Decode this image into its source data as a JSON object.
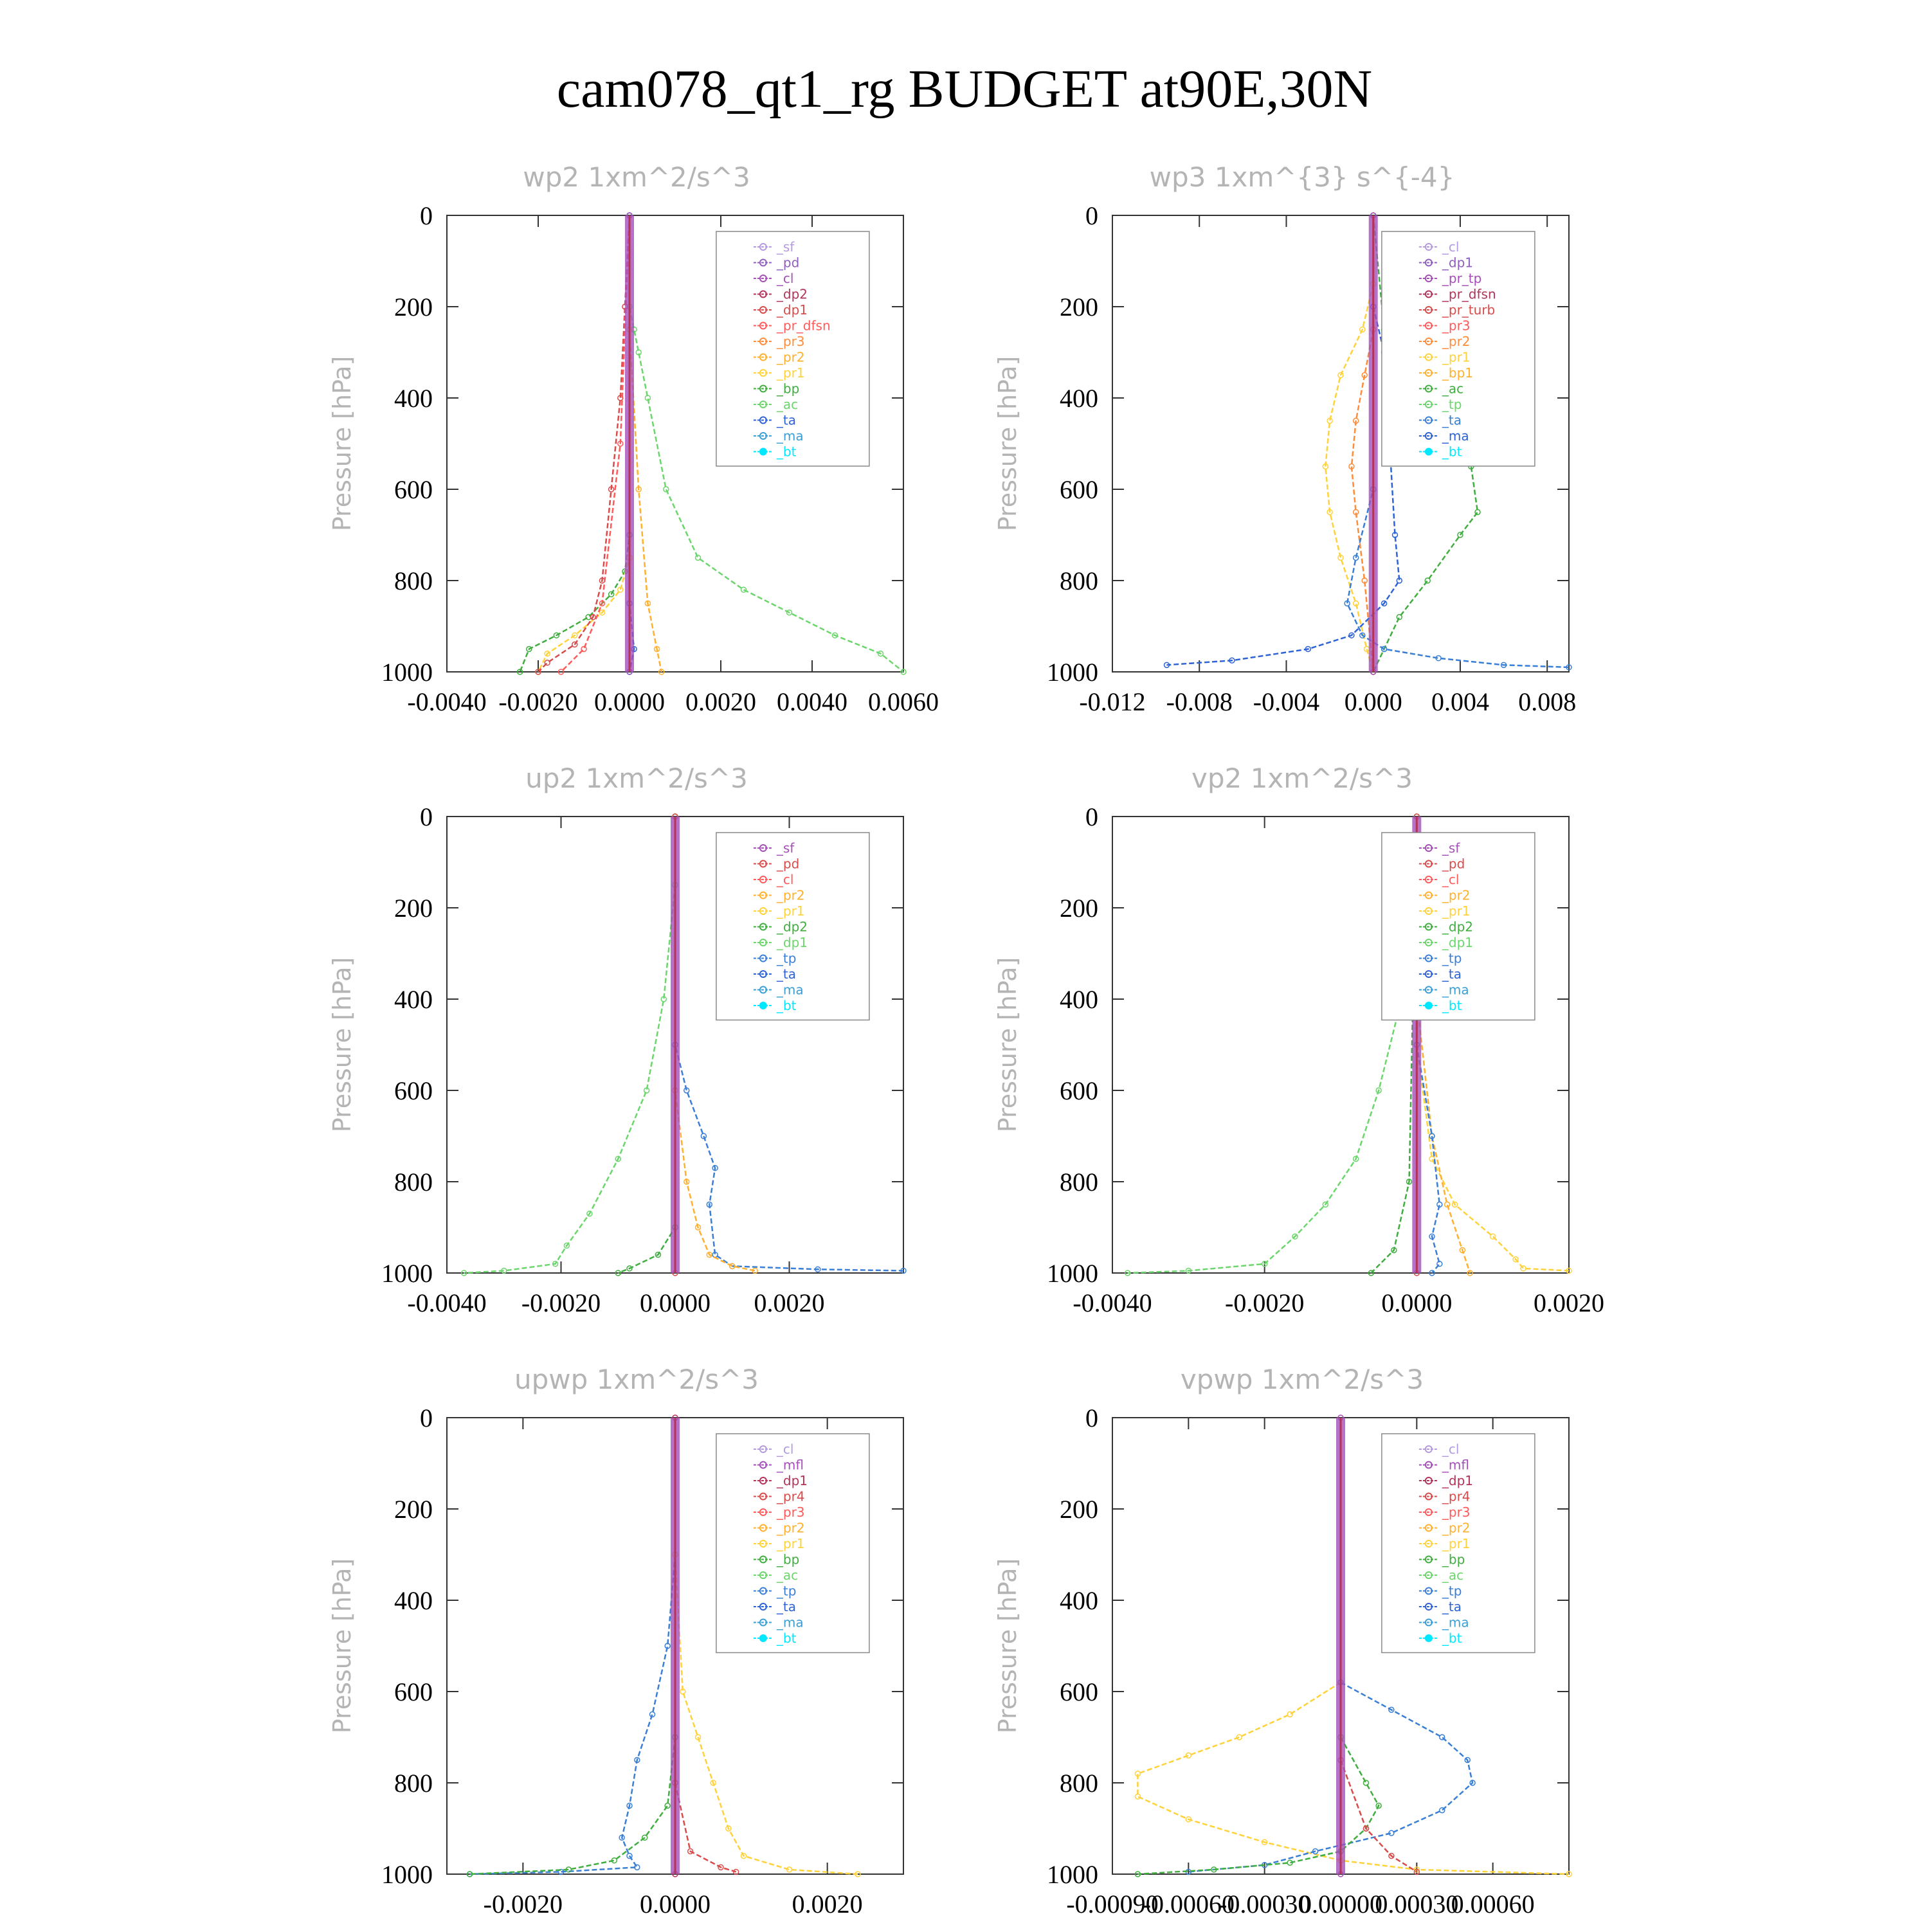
{
  "figure": {
    "title": "cam078_qt1_rg  BUDGET at90E,30N"
  },
  "colors": {
    "sf": "#b49adf",
    "pd": "#8e5fbf",
    "cl": "#a44fb8",
    "dp2": "#b43358",
    "dp1": "#d94b4b",
    "pr_dfsn": "#ff5a5a",
    "pr3": "#ff8c3a",
    "pr2": "#ffb02e",
    "pr1": "#ffd23a",
    "bp": "#3fae3f",
    "ac": "#6bd66b",
    "ta": "#2e63d6",
    "ma": "#3a9fd6",
    "bt": "#00e8ff",
    "tp": "#3a7fd6"
  },
  "chart_data": [
    {
      "type": "line",
      "id": "wp2",
      "title": "wp2   1xm^2/s^3",
      "ylabel": "Pressure [hPa]",
      "xlim": [
        -0.004,
        0.006
      ],
      "ylim": [
        1000,
        0
      ],
      "xticks": [
        "-0.0040",
        "-0.0020",
        "0.0000",
        "0.0020",
        "0.0040",
        "0.0060"
      ],
      "xtick_values": [
        -0.004,
        -0.002,
        0.0,
        0.002,
        0.004,
        0.006
      ],
      "yticks": [
        "0",
        "200",
        "400",
        "600",
        "800",
        "1000"
      ],
      "legend": [
        "_sf",
        "_pd",
        "_cl",
        "_dp2",
        "_dp1",
        "_pr_dfsn",
        "_pr3",
        "_pr2",
        "_pr1",
        "_bp",
        "_ac",
        "_ta",
        "_ma",
        "_bt"
      ],
      "legend_colors": [
        "#b49adf",
        "#8e5fbf",
        "#a44fb8",
        "#b43358",
        "#d94b4b",
        "#ff5a5a",
        "#ff8c3a",
        "#ffb02e",
        "#ffd23a",
        "#3fae3f",
        "#6bd66b",
        "#2e63d6",
        "#3a9fd6",
        "#00e8ff"
      ],
      "series": [
        {
          "color": "#6bd66b",
          "x": [
            0,
            0,
            0.0001,
            0.0002,
            0.0004,
            0.0008,
            0.0015,
            0.0025,
            0.0035,
            0.0045,
            0.0055,
            0.006
          ],
          "y": [
            0,
            200,
            250,
            300,
            400,
            600,
            750,
            820,
            870,
            920,
            960,
            1000
          ]
        },
        {
          "color": "#3fae3f",
          "x": [
            0,
            0,
            -0.0001,
            -0.0004,
            -0.0009,
            -0.0016,
            -0.0022,
            -0.0024
          ],
          "y": [
            0,
            700,
            780,
            830,
            880,
            920,
            950,
            1000
          ]
        },
        {
          "color": "#ffd23a",
          "x": [
            0,
            0,
            -0.0002,
            -0.0006,
            -0.0012,
            -0.0018,
            -0.002
          ],
          "y": [
            0,
            750,
            820,
            870,
            920,
            960,
            1000
          ]
        },
        {
          "color": "#ffb02e",
          "x": [
            0,
            0,
            0.0002,
            0.0004,
            0.0006,
            0.0007
          ],
          "y": [
            0,
            250,
            600,
            850,
            950,
            1000
          ]
        },
        {
          "color": "#d94b4b",
          "x": [
            0,
            -0.0001,
            -0.0002,
            -0.0004,
            -0.0006,
            -0.0008,
            -0.0012,
            -0.0018,
            -0.002
          ],
          "y": [
            0,
            200,
            400,
            600,
            800,
            880,
            940,
            980,
            1000
          ]
        },
        {
          "color": "#ff5a5a",
          "x": [
            0,
            -0.0002,
            -0.0006,
            -0.001,
            -0.0015
          ],
          "y": [
            0,
            500,
            850,
            950,
            1000
          ]
        },
        {
          "color": "#2e63d6",
          "x": [
            0,
            0,
            0.0001,
            0
          ],
          "y": [
            0,
            850,
            950,
            1000
          ]
        },
        {
          "color": "#a44fb8",
          "x": [
            0,
            0
          ],
          "y": [
            0,
            1000
          ]
        },
        {
          "color": "#8e5fbf",
          "x": [
            0,
            0
          ],
          "y": [
            0,
            1000
          ]
        }
      ]
    },
    {
      "type": "line",
      "id": "wp3",
      "title": "wp3   1xm^{3} s^{-4}",
      "ylabel": "Pressure [hPa]",
      "xlim": [
        -0.012,
        0.009
      ],
      "ylim": [
        1000,
        0
      ],
      "xticks": [
        "-0.012",
        "-0.008",
        "-0.004",
        "0.000",
        "0.004",
        "0.008"
      ],
      "xtick_values": [
        -0.012,
        -0.008,
        -0.004,
        0.0,
        0.004,
        0.008
      ],
      "yticks": [
        "0",
        "200",
        "400",
        "600",
        "800",
        "1000"
      ],
      "legend": [
        "_cl",
        "_dp1",
        "_pr_tp",
        "_pr_dfsn",
        "_pr_turb",
        "_pr3",
        "_pr2",
        "_pr1",
        "_bp1",
        "_ac",
        "_tp",
        "_ta",
        "_ma",
        "_bt"
      ],
      "legend_colors": [
        "#b49adf",
        "#8e5fbf",
        "#a44fb8",
        "#b43358",
        "#d94b4b",
        "#ff5a5a",
        "#ff8c3a",
        "#ffd23a",
        "#ffb02e",
        "#3fae3f",
        "#6bd66b",
        "#3a7fd6",
        "#2e63d6",
        "#00e8ff"
      ],
      "series": [
        {
          "color": "#3fae3f",
          "x": [
            0,
            0.0005,
            0.0015,
            0.003,
            0.0045,
            0.0048,
            0.004,
            0.0025,
            0.0012,
            0.0005,
            0
          ],
          "y": [
            0,
            250,
            350,
            450,
            550,
            650,
            700,
            800,
            880,
            950,
            1000
          ]
        },
        {
          "color": "#ffd23a",
          "x": [
            0,
            -0.0005,
            -0.0015,
            -0.002,
            -0.0022,
            -0.002,
            -0.0015,
            -0.0008,
            -0.0003,
            0
          ],
          "y": [
            150,
            250,
            350,
            450,
            550,
            650,
            750,
            850,
            950,
            1000
          ]
        },
        {
          "color": "#ff8c3a",
          "x": [
            0,
            -0.0004,
            -0.0008,
            -0.001,
            -0.0008,
            -0.0004,
            0
          ],
          "y": [
            250,
            350,
            450,
            550,
            650,
            800,
            1000
          ]
        },
        {
          "color": "#2e63d6",
          "x": [
            0,
            0.0005,
            0.001,
            0.0012,
            0.0005,
            -0.001,
            -0.003,
            -0.0065,
            -0.0095
          ],
          "y": [
            200,
            300,
            700,
            800,
            850,
            920,
            950,
            975,
            985
          ]
        },
        {
          "color": "#3a7fd6",
          "x": [
            0,
            0,
            -0.0008,
            -0.0012,
            -0.0005,
            0.0005,
            0.003,
            0.006,
            0.009
          ],
          "y": [
            0,
            600,
            750,
            850,
            920,
            950,
            970,
            985,
            990
          ]
        },
        {
          "color": "#a44fb8",
          "x": [
            0,
            0
          ],
          "y": [
            0,
            1000
          ]
        }
      ]
    },
    {
      "type": "line",
      "id": "up2",
      "title": "up2   1xm^2/s^3",
      "ylabel": "Pressure [hPa]",
      "xlim": [
        -0.004,
        0.004
      ],
      "ylim": [
        1000,
        0
      ],
      "xticks": [
        "-0.0040",
        "-0.0020",
        "0.0000",
        "0.0020"
      ],
      "xtick_values": [
        -0.004,
        -0.002,
        0.0,
        0.002
      ],
      "yticks": [
        "0",
        "200",
        "400",
        "600",
        "800",
        "1000"
      ],
      "legend": [
        "_sf",
        "_pd",
        "_cl",
        "_pr2",
        "_pr1",
        "_dp2",
        "_dp1",
        "_tp",
        "_ta",
        "_ma",
        "_bt"
      ],
      "legend_colors": [
        "#a44fb8",
        "#d94b4b",
        "#ff5a5a",
        "#ffb02e",
        "#ffd23a",
        "#3fae3f",
        "#6bd66b",
        "#3a7fd6",
        "#2e63d6",
        "#3a9fd6",
        "#00e8ff"
      ],
      "series": [
        {
          "color": "#6bd66b",
          "x": [
            0,
            0,
            -0.0002,
            -0.0005,
            -0.001,
            -0.0015,
            -0.0019,
            -0.0021,
            -0.003,
            -0.0037
          ],
          "y": [
            0,
            150,
            400,
            600,
            750,
            870,
            940,
            980,
            995,
            1000
          ]
        },
        {
          "color": "#3a7fd6",
          "x": [
            0,
            0,
            0.0002,
            0.0005,
            0.0007,
            0.0006,
            0.0007,
            0.001,
            0.0025,
            0.004
          ],
          "y": [
            0,
            500,
            600,
            700,
            770,
            850,
            960,
            985,
            992,
            995
          ]
        },
        {
          "color": "#ffb02e",
          "x": [
            0,
            0,
            0.0002,
            0.0004,
            0.0006,
            0.001,
            0.0014
          ],
          "y": [
            0,
            600,
            800,
            900,
            960,
            985,
            995
          ]
        },
        {
          "color": "#3fae3f",
          "x": [
            0,
            0,
            -0.0003,
            -0.0008,
            -0.001
          ],
          "y": [
            0,
            900,
            960,
            990,
            1000
          ]
        },
        {
          "color": "#d94b4b",
          "x": [
            0,
            0
          ],
          "y": [
            0,
            1000
          ]
        }
      ]
    },
    {
      "type": "line",
      "id": "vp2",
      "title": "vp2   1xm^2/s^3",
      "ylabel": "Pressure [hPa]",
      "xlim": [
        -0.004,
        0.002
      ],
      "ylim": [
        1000,
        0
      ],
      "xticks": [
        "-0.0040",
        "-0.0020",
        "0.0000",
        "0.0020"
      ],
      "xtick_values": [
        -0.004,
        -0.002,
        0.0,
        0.002
      ],
      "yticks": [
        "0",
        "200",
        "400",
        "600",
        "800",
        "1000"
      ],
      "legend": [
        "_sf",
        "_pd",
        "_cl",
        "_pr2",
        "_pr1",
        "_dp2",
        "_dp1",
        "_tp",
        "_ta",
        "_ma",
        "_bt"
      ],
      "legend_colors": [
        "#a44fb8",
        "#d94b4b",
        "#ff5a5a",
        "#ffb02e",
        "#ffd23a",
        "#3fae3f",
        "#6bd66b",
        "#3a7fd6",
        "#2e63d6",
        "#3a9fd6",
        "#00e8ff"
      ],
      "series": [
        {
          "color": "#6bd66b",
          "x": [
            0,
            -0.0002,
            -0.0005,
            -0.0008,
            -0.0012,
            -0.0016,
            -0.002,
            -0.003,
            -0.0038
          ],
          "y": [
            150,
            400,
            600,
            750,
            850,
            920,
            980,
            995,
            1000
          ]
        },
        {
          "color": "#ffd23a",
          "x": [
            0,
            0.0002,
            0.0005,
            0.001,
            0.0013,
            0.0014,
            0.002
          ],
          "y": [
            500,
            750,
            850,
            920,
            970,
            990,
            995
          ]
        },
        {
          "color": "#ffb02e",
          "x": [
            0,
            0.0002,
            0.0004,
            0.0006,
            0.0007
          ],
          "y": [
            400,
            700,
            850,
            950,
            1000
          ]
        },
        {
          "color": "#3a7fd6",
          "x": [
            0,
            0.0002,
            0.0003,
            0.0002,
            0.0003,
            0.0002
          ],
          "y": [
            500,
            700,
            850,
            920,
            980,
            1000
          ]
        },
        {
          "color": "#3fae3f",
          "x": [
            0,
            -0.0001,
            -0.0003,
            -0.0006
          ],
          "y": [
            0,
            800,
            950,
            1000
          ]
        },
        {
          "color": "#d94b4b",
          "x": [
            0,
            0
          ],
          "y": [
            0,
            1000
          ]
        }
      ]
    },
    {
      "type": "line",
      "id": "upwp",
      "title": "upwp   1xm^2/s^3",
      "ylabel": "Pressure [hPa]",
      "xlim": [
        -0.003,
        0.003
      ],
      "ylim": [
        1000,
        0
      ],
      "xticks": [
        "-0.0020",
        "0.0000",
        "0.0020"
      ],
      "xtick_values": [
        -0.002,
        0.0,
        0.002
      ],
      "yticks": [
        "0",
        "200",
        "400",
        "600",
        "800",
        "1000"
      ],
      "legend": [
        "_cl",
        "_mfl",
        "_dp1",
        "_pr4",
        "_pr3",
        "_pr2",
        "_pr1",
        "_bp",
        "_ac",
        "_tp",
        "_ta",
        "_ma",
        "_bt"
      ],
      "legend_colors": [
        "#b49adf",
        "#a44fb8",
        "#b43358",
        "#d94b4b",
        "#ff5a5a",
        "#ffb02e",
        "#ffd23a",
        "#3fae3f",
        "#6bd66b",
        "#3a7fd6",
        "#2e63d6",
        "#3a9fd6",
        "#00e8ff"
      ],
      "series": [
        {
          "color": "#3a7fd6",
          "x": [
            0,
            -0.0001,
            -0.0003,
            -0.0005,
            -0.0006,
            -0.0007,
            -0.0006,
            -0.0005,
            -0.0015,
            -0.0027
          ],
          "y": [
            300,
            500,
            650,
            750,
            850,
            920,
            960,
            985,
            995,
            1000
          ]
        },
        {
          "color": "#ffd23a",
          "x": [
            0,
            0.0001,
            0.0003,
            0.0005,
            0.0007,
            0.0009,
            0.0015,
            0.0024
          ],
          "y": [
            300,
            600,
            700,
            800,
            900,
            960,
            990,
            1000
          ]
        },
        {
          "color": "#3fae3f",
          "x": [
            0,
            -0.0001,
            -0.0004,
            -0.0008,
            -0.0014,
            -0.0027
          ],
          "y": [
            700,
            850,
            920,
            970,
            990,
            1000
          ]
        },
        {
          "color": "#d94b4b",
          "x": [
            0,
            0.0002,
            0.0006,
            0.0008
          ],
          "y": [
            800,
            950,
            985,
            995
          ]
        },
        {
          "color": "#b43358",
          "x": [
            0,
            0
          ],
          "y": [
            0,
            1000
          ]
        }
      ]
    },
    {
      "type": "line",
      "id": "vpwp",
      "title": "vpwp   1xm^2/s^3",
      "ylabel": "Pressure [hPa]",
      "xlim": [
        -0.0009,
        0.0009
      ],
      "ylim": [
        1000,
        0
      ],
      "xticks": [
        "-0.00090",
        "-0.00060",
        "-0.00030",
        "0.00000",
        "0.00030",
        "0.00060"
      ],
      "xtick_values": [
        -0.0009,
        -0.0006,
        -0.0003,
        0.0,
        0.0003,
        0.0006
      ],
      "yticks": [
        "0",
        "200",
        "400",
        "600",
        "800",
        "1000"
      ],
      "legend": [
        "_cl",
        "_mfl",
        "_dp1",
        "_pr4",
        "_pr3",
        "_pr2",
        "_pr1",
        "_bp",
        "_ac",
        "_tp",
        "_ta",
        "_ma",
        "_bt"
      ],
      "legend_colors": [
        "#b49adf",
        "#a44fb8",
        "#b43358",
        "#d94b4b",
        "#ff5a5a",
        "#ffb02e",
        "#ffd23a",
        "#3fae3f",
        "#6bd66b",
        "#3a7fd6",
        "#2e63d6",
        "#3a9fd6",
        "#00e8ff"
      ],
      "series": [
        {
          "color": "#ffd23a",
          "x": [
            0,
            -0.0002,
            -0.0004,
            -0.0006,
            -0.0008,
            -0.0008,
            -0.0006,
            -0.0003,
            0,
            0.0003,
            0.0009
          ],
          "y": [
            580,
            650,
            700,
            740,
            780,
            830,
            880,
            930,
            970,
            990,
            1000
          ]
        },
        {
          "color": "#3a7fd6",
          "x": [
            0,
            0.0002,
            0.0004,
            0.0005,
            0.00052,
            0.0004,
            0.0002,
            -0.0001,
            -0.0003,
            -0.0006
          ],
          "y": [
            580,
            640,
            700,
            750,
            800,
            860,
            910,
            950,
            980,
            995
          ]
        },
        {
          "color": "#3fae3f",
          "x": [
            0,
            0.0001,
            0.00015,
            0.0001,
            0,
            -0.0002,
            -0.0005,
            -0.0008
          ],
          "y": [
            700,
            800,
            850,
            900,
            950,
            975,
            990,
            1000
          ]
        },
        {
          "color": "#d94b4b",
          "x": [
            0,
            0.0001,
            0.0002,
            0.0003
          ],
          "y": [
            750,
            900,
            960,
            995
          ]
        },
        {
          "color": "#a44fb8",
          "x": [
            0,
            0
          ],
          "y": [
            0,
            1000
          ]
        }
      ]
    }
  ]
}
